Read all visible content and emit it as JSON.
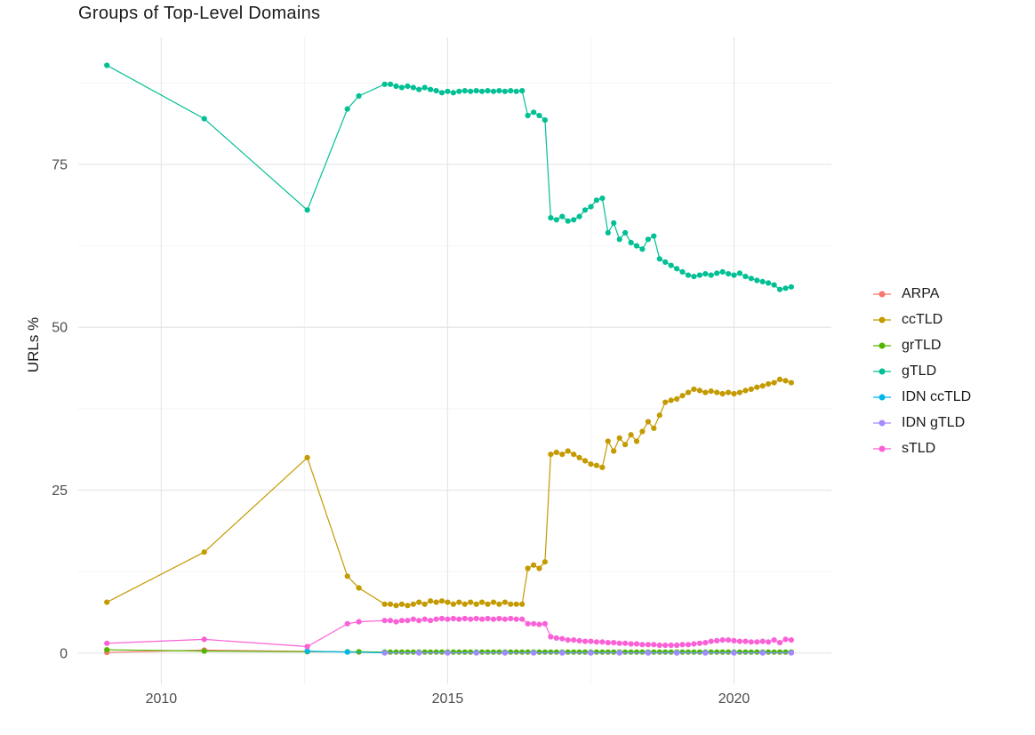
{
  "chart_data": {
    "type": "line",
    "title": "Groups of Top-Level Domains",
    "ylabel": "URLs %",
    "xlabel": "",
    "xlim": [
      2008.55,
      2021.7
    ],
    "ylim": [
      -4.8,
      94.5
    ],
    "xticks": [
      2010,
      2015,
      2020
    ],
    "xtick_labels": [
      "2010",
      "2015",
      "2020"
    ],
    "yticks": [
      0,
      25,
      50,
      75
    ],
    "ytick_labels": [
      "0",
      "25",
      "50",
      "75"
    ],
    "x_minor": [
      2012.5,
      2017.5
    ],
    "y_minor": [
      12.5,
      37.5,
      62.5,
      87.5
    ],
    "grid": true,
    "legend_position": "right",
    "x": [
      2009.05,
      2010.75,
      2012.55,
      2013.25,
      2013.45,
      2013.9,
      2014,
      2014.1,
      2014.2,
      2014.3,
      2014.4,
      2014.5,
      2014.6,
      2014.7,
      2014.8,
      2014.9,
      2015,
      2015.1,
      2015.2,
      2015.3,
      2015.4,
      2015.5,
      2015.6,
      2015.7,
      2015.8,
      2015.9,
      2016,
      2016.1,
      2016.2,
      2016.3,
      2016.4,
      2016.5,
      2016.6,
      2016.7,
      2016.8,
      2016.9,
      2017,
      2017.1,
      2017.2,
      2017.3,
      2017.4,
      2017.5,
      2017.6,
      2017.7,
      2017.8,
      2017.9,
      2018,
      2018.1,
      2018.2,
      2018.3,
      2018.4,
      2018.5,
      2018.6,
      2018.7,
      2018.8,
      2018.9,
      2019,
      2019.1,
      2019.2,
      2019.3,
      2019.4,
      2019.5,
      2019.6,
      2019.7,
      2019.8,
      2019.9,
      2020,
      2020.1,
      2020.2,
      2020.3,
      2020.4,
      2020.5,
      2020.6,
      2020.7,
      2020.8,
      2020.9,
      2021
    ],
    "series": [
      {
        "name": "ARPA",
        "color": "#F8766D",
        "points": [
          [
            2009.05,
            0.1
          ],
          [
            2010.75,
            0.45
          ],
          [
            2012.55,
            0.25
          ],
          [
            2013.45,
            0.15
          ],
          [
            2014.5,
            0.05
          ],
          [
            2015.5,
            0.05
          ],
          [
            2016.5,
            0.05
          ],
          [
            2017.5,
            0.05
          ],
          [
            2018.5,
            0.05
          ],
          [
            2019.5,
            0.05
          ],
          [
            2020.5,
            0.05
          ],
          [
            2021,
            0.05
          ]
        ]
      },
      {
        "name": "ccTLD",
        "color": "#C49A00",
        "values": [
          7.8,
          15.5,
          30,
          11.8,
          10,
          7.5,
          7.5,
          7.3,
          7.5,
          7.3,
          7.5,
          7.8,
          7.5,
          8,
          7.8,
          8,
          7.8,
          7.5,
          7.8,
          7.5,
          7.8,
          7.5,
          7.8,
          7.5,
          7.8,
          7.5,
          7.8,
          7.5,
          7.5,
          7.5,
          13,
          13.5,
          13,
          14,
          30.5,
          30.8,
          30.5,
          31,
          30.5,
          30,
          29.5,
          29,
          28.8,
          28.5,
          32.5,
          31,
          33,
          32,
          33.5,
          32.5,
          34,
          35.5,
          34.5,
          36.5,
          38.5,
          38.8,
          39,
          39.5,
          40,
          40.5,
          40.3,
          40,
          40.2,
          40,
          39.8,
          40,
          39.8,
          40,
          40.3,
          40.5,
          40.8,
          41,
          41.3,
          41.5,
          42,
          41.8,
          41.5
        ]
      },
      {
        "name": "grTLD",
        "color": "#53B400",
        "values": [
          0.5,
          0.3,
          0.2,
          0.2,
          0.2,
          0.15,
          0.15,
          0.15,
          0.15,
          0.15,
          0.15,
          0.15,
          0.15,
          0.15,
          0.15,
          0.15,
          0.15,
          0.15,
          0.15,
          0.15,
          0.15,
          0.15,
          0.15,
          0.15,
          0.15,
          0.15,
          0.15,
          0.15,
          0.15,
          0.15,
          0.15,
          0.15,
          0.15,
          0.15,
          0.15,
          0.15,
          0.15,
          0.15,
          0.15,
          0.15,
          0.15,
          0.15,
          0.15,
          0.15,
          0.15,
          0.15,
          0.15,
          0.15,
          0.15,
          0.15,
          0.15,
          0.15,
          0.15,
          0.15,
          0.15,
          0.15,
          0.15,
          0.15,
          0.15,
          0.15,
          0.15,
          0.15,
          0.15,
          0.15,
          0.15,
          0.15,
          0.15,
          0.15,
          0.15,
          0.15,
          0.15,
          0.15,
          0.15,
          0.15,
          0.15,
          0.15,
          0.15
        ]
      },
      {
        "name": "gTLD",
        "color": "#00C094",
        "values": [
          90.2,
          82,
          68,
          83.5,
          85.5,
          87.3,
          87.3,
          87,
          86.8,
          87,
          86.8,
          86.5,
          86.8,
          86.5,
          86.3,
          86,
          86.2,
          86,
          86.2,
          86.3,
          86.2,
          86.3,
          86.2,
          86.3,
          86.2,
          86.3,
          86.2,
          86.3,
          86.2,
          86.3,
          82.5,
          83,
          82.5,
          81.8,
          66.8,
          66.5,
          67,
          66.3,
          66.5,
          67,
          68,
          68.5,
          69.5,
          69.8,
          64.5,
          66,
          63.5,
          64.5,
          63,
          62.5,
          62,
          63.5,
          64,
          60.5,
          60,
          59.5,
          59,
          58.5,
          58,
          57.8,
          58,
          58.2,
          58,
          58.3,
          58.5,
          58.2,
          58,
          58.3,
          57.8,
          57.5,
          57.2,
          57,
          56.8,
          56.5,
          55.8,
          56,
          56.2
        ]
      },
      {
        "name": "IDN ccTLD",
        "color": "#00B6EB",
        "points": [
          [
            2012.55,
            0.3
          ],
          [
            2013.25,
            0.15
          ],
          [
            2013.9,
            0.05
          ],
          [
            2014.5,
            0.05
          ],
          [
            2015,
            0.05
          ],
          [
            2015.5,
            0.05
          ],
          [
            2016,
            0.05
          ],
          [
            2016.5,
            0.05
          ],
          [
            2017,
            0.05
          ],
          [
            2017.5,
            0.05
          ],
          [
            2018,
            0.05
          ],
          [
            2018.5,
            0.05
          ],
          [
            2019,
            0.05
          ],
          [
            2019.5,
            0.05
          ],
          [
            2020,
            0.05
          ],
          [
            2020.5,
            0.05
          ],
          [
            2021,
            0.05
          ]
        ]
      },
      {
        "name": "IDN gTLD",
        "color": "#A58AFF",
        "points": [
          [
            2013.9,
            0.02
          ],
          [
            2014.5,
            0.02
          ],
          [
            2015,
            0.02
          ],
          [
            2015.5,
            0.02
          ],
          [
            2016,
            0.02
          ],
          [
            2016.5,
            0.02
          ],
          [
            2017,
            0.02
          ],
          [
            2017.5,
            0.02
          ],
          [
            2018,
            0.02
          ],
          [
            2018.5,
            0.02
          ],
          [
            2019,
            0.02
          ],
          [
            2019.5,
            0.02
          ],
          [
            2020,
            0.02
          ],
          [
            2020.5,
            0.02
          ],
          [
            2021,
            0.02
          ]
        ]
      },
      {
        "name": "sTLD",
        "color": "#FB61D7",
        "values": [
          1.5,
          2.1,
          1,
          4.5,
          4.8,
          5,
          5,
          4.8,
          5,
          5,
          5.2,
          5,
          5.2,
          5,
          5.2,
          5.3,
          5.2,
          5.3,
          5.2,
          5.3,
          5.2,
          5.3,
          5.2,
          5.3,
          5.2,
          5.3,
          5.2,
          5.3,
          5.2,
          5.2,
          4.5,
          4.5,
          4.4,
          4.5,
          2.5,
          2.3,
          2.2,
          2,
          2,
          1.9,
          1.8,
          1.8,
          1.7,
          1.7,
          1.6,
          1.6,
          1.5,
          1.5,
          1.4,
          1.4,
          1.3,
          1.3,
          1.3,
          1.2,
          1.2,
          1.2,
          1.2,
          1.3,
          1.3,
          1.4,
          1.5,
          1.6,
          1.8,
          1.9,
          2,
          2,
          1.9,
          1.8,
          1.8,
          1.7,
          1.7,
          1.8,
          1.7,
          2,
          1.6,
          2.1,
          2
        ]
      }
    ]
  }
}
